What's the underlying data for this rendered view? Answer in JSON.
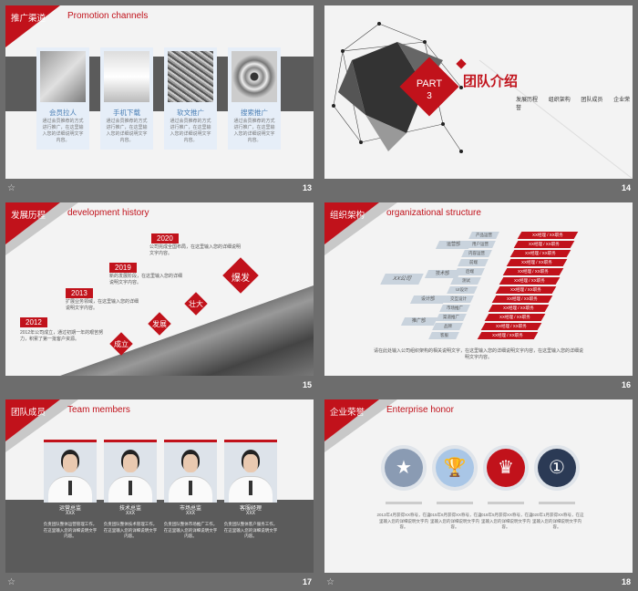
{
  "slides": [
    {
      "number": "13",
      "title_zh": "推广渠道",
      "title_en": "Promotion channels",
      "cards": [
        {
          "title": "会员拉人",
          "desc": "通过会员推荐的方式进行推广，在这里输入您的详细说明文字内容。"
        },
        {
          "title": "手机下载",
          "desc": "通过会员推荐的方式进行推广，在这里输入您的详细说明文字内容。"
        },
        {
          "title": "软文推广",
          "desc": "通过会员推荐的方式进行推广，在这里输入您的详细说明文字内容。"
        },
        {
          "title": "搜索推广",
          "desc": "通过会员推荐的方式进行推广，在这里输入您的详细说明文字内容。"
        }
      ]
    },
    {
      "number": "14",
      "part_label": "PART",
      "part_number": "3",
      "title_zh": "团队介绍",
      "nav": [
        "发展历程",
        "组织架构",
        "团队成员",
        "企业荣誉"
      ]
    },
    {
      "number": "15",
      "title_zh": "发展历程",
      "title_en": "development history",
      "milestones": [
        {
          "year": "2012",
          "desc": "2012年公司成立，通过初期一年的艰苦努力，积累了第一批客户资源。"
        },
        {
          "year": "2013",
          "desc": "扩展业务领域，在这里输入您的详细说明文字内容。"
        },
        {
          "year": "2019",
          "desc": "新的发展阶段，在这里输入您的详细说明文字内容。"
        },
        {
          "year": "2020",
          "desc": "公司完成全国布局，在这里输入您的详细说明文字内容。"
        }
      ],
      "stages": [
        "成立",
        "发展",
        "壮大",
        "爆发"
      ]
    },
    {
      "number": "16",
      "title_zh": "组织架构",
      "title_en": "organizational structure",
      "root": "XX公司",
      "level1": [
        "运营部",
        "技术部",
        "设计部",
        "推广部"
      ],
      "level2": [
        "产品运营",
        "用户运营",
        "内容运营",
        "前端",
        "后端",
        "测试",
        "UI设计",
        "交互设计",
        "市场推广",
        "渠道推广",
        "品牌",
        "客服"
      ],
      "bar_label": "XX经理 / XX职务",
      "desc": "请在此处输入公司组织架构的相关说明文字，在这里输入您的详细说明文字内容，在这里输入您的详细说明文字内容。"
    },
    {
      "number": "17",
      "title_zh": "团队成员",
      "title_en": "Team members",
      "members": [
        {
          "role": "运营总监",
          "name": "XXX",
          "desc": "负责团队整体运营管理工作，在这里输入您的详细说明文字内容。"
        },
        {
          "role": "技术总监",
          "name": "XXX",
          "desc": "负责团队整体技术管理工作，在这里输入您的详细说明文字内容。"
        },
        {
          "role": "市场总监",
          "name": "XXX",
          "desc": "负责团队整体市场推广工作，在这里输入您的详细说明文字内容。"
        },
        {
          "role": "客服经理",
          "name": "XXX",
          "desc": "负责团队整体客户服务工作，在这里输入您的详细说明文字内容。"
        }
      ]
    },
    {
      "number": "18",
      "title_zh": "企业荣誉",
      "title_en": "Enterprise honor",
      "honors": [
        {
          "icon": "star-trophy-icon",
          "glyph": "★",
          "color": "#8a9bb3",
          "desc": "2013年4月获得XX称号，在这里输入您的详细说明文字内容。"
        },
        {
          "icon": "cup-trophy-icon",
          "glyph": "🏆",
          "color": "#a9c6e6",
          "desc": "2015年6月获得XX称号，在这里输入您的详细说明文字内容。"
        },
        {
          "icon": "red-trophy-icon",
          "glyph": "♛",
          "color": "#c1121b",
          "desc": "2018年5月获得XX称号，在这里输入您的详细说明文字内容。"
        },
        {
          "icon": "medal-icon",
          "glyph": "①",
          "color": "#2b3a55",
          "desc": "2020年1月获得XX称号，在这里输入您的详细说明文字内容。"
        }
      ]
    }
  ],
  "colors": {
    "accent": "#c1121b",
    "band": "#5b5b5b",
    "background": "#6d6d6d"
  }
}
